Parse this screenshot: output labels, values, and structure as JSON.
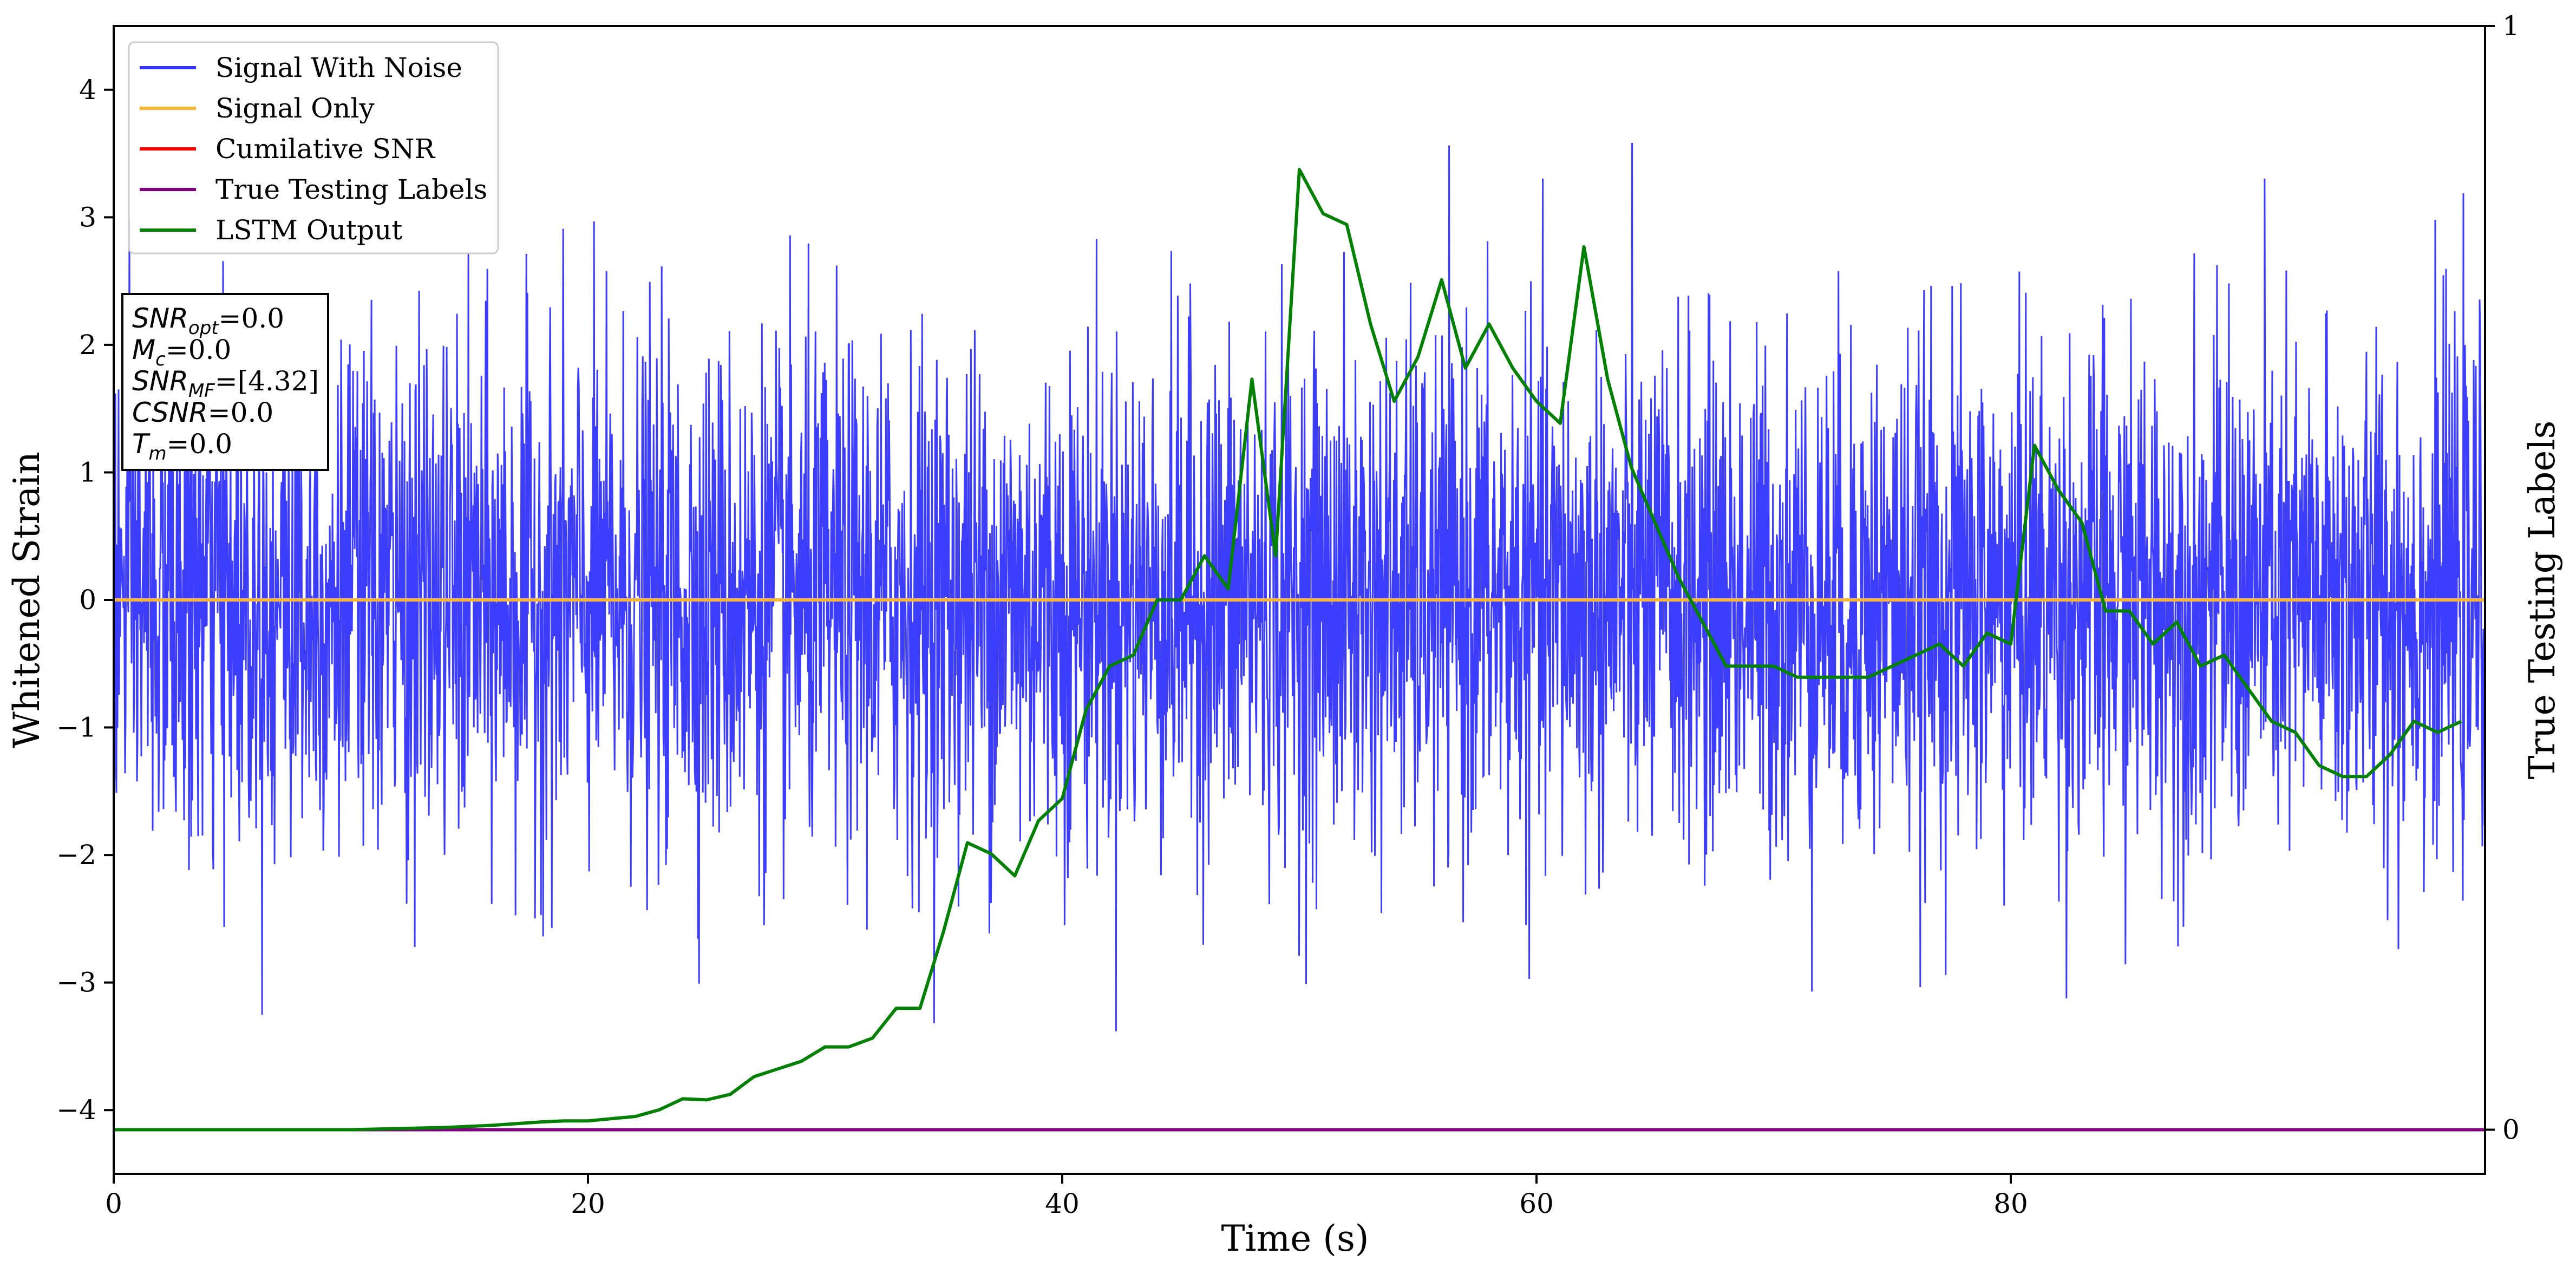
{
  "chart_data": {
    "type": "line",
    "xlabel": "Time (s)",
    "ylabel": "Whitened Strain",
    "ylabel_right": "True Testing Labels",
    "xlim": [
      0,
      100
    ],
    "ylim": [
      -4.5,
      4.5
    ],
    "ylim_right": [
      -0.04,
      1.0
    ],
    "x_ticks": [
      "0",
      "20",
      "40",
      "60",
      "80"
    ],
    "x_tick_values": [
      0,
      20,
      40,
      60,
      80
    ],
    "y_ticks": [
      "−4",
      "−3",
      "−2",
      "−1",
      "0",
      "1",
      "2",
      "3",
      "4"
    ],
    "y_tick_values": [
      -4,
      -3,
      -2,
      -1,
      0,
      1,
      2,
      3,
      4
    ],
    "y_right_ticks": [
      "0",
      "1"
    ],
    "y_right_tick_values": [
      0,
      1
    ],
    "grid": false,
    "legend_placement": "top-left",
    "series": [
      {
        "name": "Signal With Noise",
        "color": "#3333ff",
        "axis": "left",
        "description_of_values": "noise spanning approx -3.7 to 3.6",
        "noise_std": 1.0,
        "noise_min": -3.7,
        "noise_max": 3.6
      },
      {
        "name": "Signal Only",
        "color": "#ffb733",
        "axis": "left",
        "x": [
          0,
          100
        ],
        "y": [
          0,
          0
        ]
      },
      {
        "name": "Cumilative SNR",
        "color": "#ff0000",
        "axis": "left",
        "x": [],
        "y": []
      },
      {
        "name": "True Testing Labels",
        "color": "#800080",
        "axis": "right",
        "x": [
          0,
          100
        ],
        "y": [
          0,
          0
        ]
      },
      {
        "name": "LSTM Output",
        "color": "#008000",
        "axis": "right",
        "x": [
          0,
          5,
          10,
          12,
          14,
          16,
          18,
          19,
          20,
          21,
          22,
          23,
          24,
          25,
          26,
          27,
          28,
          29,
          30,
          31,
          32,
          33,
          34,
          35,
          36,
          37,
          38,
          39,
          40,
          41,
          42,
          43,
          44,
          45,
          46,
          47,
          48,
          49,
          50,
          51,
          52,
          53,
          54,
          55,
          56,
          57,
          58,
          59,
          60,
          61,
          62,
          63,
          64,
          65,
          66,
          67,
          68,
          69,
          70,
          71,
          72,
          73,
          74,
          75,
          76,
          77,
          78,
          79,
          80,
          81,
          82,
          83,
          84,
          85,
          86,
          87,
          88,
          89,
          90,
          91,
          92,
          93,
          94,
          95,
          96,
          97,
          98,
          99
        ],
        "y": [
          0.0,
          0.0,
          0.0,
          0.001,
          0.002,
          0.004,
          0.007,
          0.008,
          0.008,
          0.01,
          0.012,
          0.018,
          0.028,
          0.027,
          0.032,
          0.048,
          0.055,
          0.062,
          0.075,
          0.075,
          0.083,
          0.11,
          0.11,
          0.18,
          0.26,
          0.25,
          0.23,
          0.28,
          0.3,
          0.38,
          0.42,
          0.43,
          0.48,
          0.48,
          0.52,
          0.49,
          0.68,
          0.52,
          0.87,
          0.83,
          0.82,
          0.73,
          0.66,
          0.7,
          0.77,
          0.69,
          0.73,
          0.69,
          0.66,
          0.64,
          0.8,
          0.68,
          0.6,
          0.55,
          0.5,
          0.46,
          0.42,
          0.42,
          0.42,
          0.41,
          0.41,
          0.41,
          0.41,
          0.42,
          0.43,
          0.44,
          0.42,
          0.45,
          0.44,
          0.62,
          0.58,
          0.55,
          0.47,
          0.47,
          0.44,
          0.46,
          0.42,
          0.43,
          0.4,
          0.37,
          0.36,
          0.33,
          0.32,
          0.32,
          0.34,
          0.37,
          0.36,
          0.37
        ]
      }
    ],
    "info_box": [
      {
        "main": "SNR",
        "sub": "opt",
        "value": "=0.0"
      },
      {
        "main": "M",
        "sub": "c",
        "value": "=0.0"
      },
      {
        "main": "SNR",
        "sub": "MF",
        "value": "=[4.32]"
      },
      {
        "main": "CSNR",
        "sub": "",
        "value": "=0.0"
      },
      {
        "main": "T",
        "sub": "m",
        "value": "=0.0"
      }
    ]
  }
}
